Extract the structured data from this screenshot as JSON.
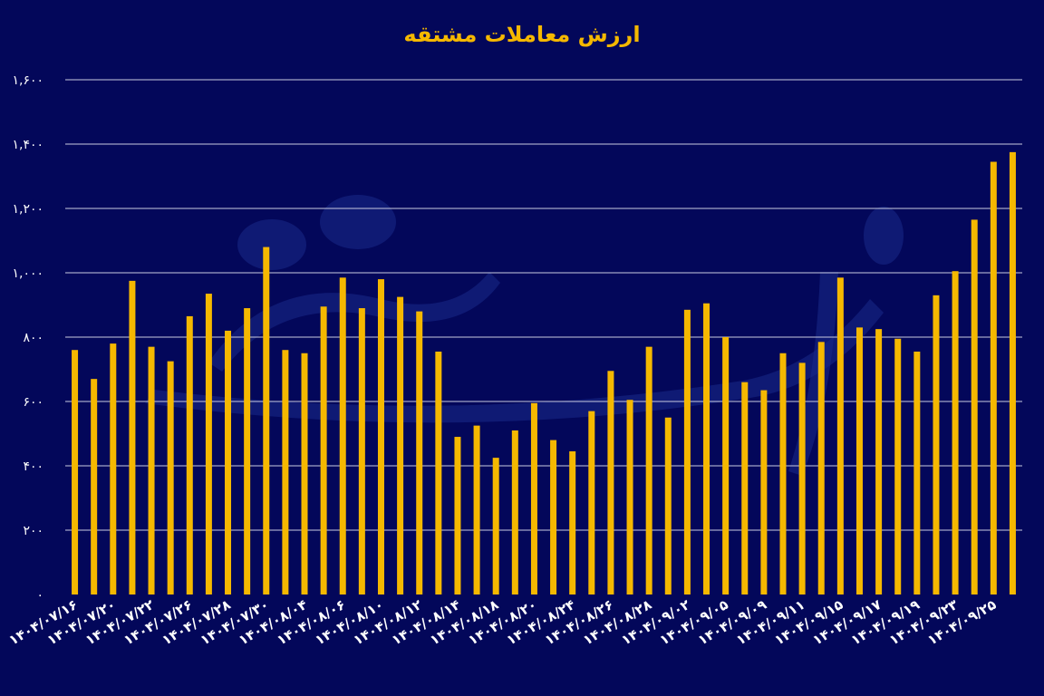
{
  "chart_data": {
    "type": "bar",
    "title": "ارزش معاملات مشتقه",
    "xlabel": "",
    "ylabel": "",
    "ylim": [
      0,
      1600
    ],
    "yticks": [
      "۰",
      "۲۰۰",
      "۴۰۰",
      "۶۰۰",
      "۸۰۰",
      "۱,۰۰۰",
      "۱,۲۰۰",
      "۱,۴۰۰",
      "۱,۶۰۰"
    ],
    "ytick_values": [
      0,
      200,
      400,
      600,
      800,
      1000,
      1200,
      1400,
      1600
    ],
    "grid": true,
    "colors": {
      "background": "#03075a",
      "bar": "#f5b800",
      "title": "#f5b800",
      "grid": "#c9cbe0",
      "text": "#ffffff"
    },
    "xtick_labels": [
      "۱۴۰۴/۰۷/۱۶",
      "۱۴۰۴/۰۷/۲۰",
      "۱۴۰۴/۰۷/۲۲",
      "۱۴۰۴/۰۷/۲۶",
      "۱۴۰۴/۰۷/۲۸",
      "۱۴۰۴/۰۷/۳۰",
      "۱۴۰۴/۰۸/۰۴",
      "۱۴۰۴/۰۸/۰۶",
      "۱۴۰۴/۰۸/۱۰",
      "۱۴۰۴/۰۸/۱۲",
      "۱۴۰۴/۰۸/۱۴",
      "۱۴۰۴/۰۸/۱۸",
      "۱۴۰۴/۰۸/۲۰",
      "۱۴۰۴/۰۸/۲۴",
      "۱۴۰۴/۰۸/۲۶",
      "۱۴۰۴/۰۸/۲۸",
      "۱۴۰۴/۰۹/۰۲",
      "۱۴۰۴/۰۹/۰۵",
      "۱۴۰۴/۰۹/۰۹",
      "۱۴۰۴/۰۹/۱۱",
      "۱۴۰۴/۰۹/۱۵",
      "۱۴۰۴/۰۹/۱۷",
      "۱۴۰۴/۰۹/۱۹",
      "۱۴۰۴/۰۹/۲۳",
      "۱۴۰۴/۰۹/۲۵"
    ],
    "values": [
      760,
      670,
      780,
      975,
      770,
      725,
      865,
      935,
      820,
      890,
      1080,
      760,
      750,
      895,
      985,
      890,
      980,
      925,
      880,
      755,
      490,
      525,
      425,
      510,
      595,
      480,
      445,
      570,
      695,
      605,
      770,
      550,
      885,
      905,
      800,
      660,
      635,
      750,
      720,
      785,
      985,
      830,
      825,
      795,
      755,
      930,
      1005,
      1165,
      1345,
      1375
    ]
  }
}
